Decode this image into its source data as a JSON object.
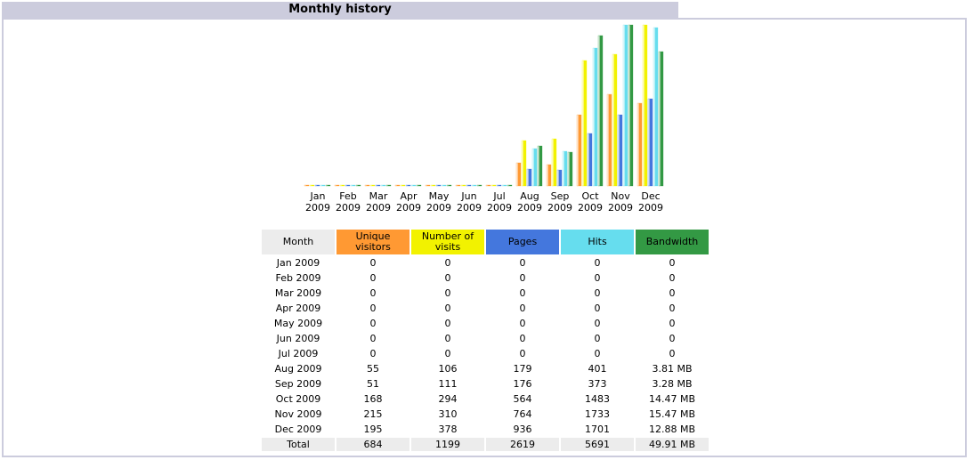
{
  "section": {
    "title": "Monthly history"
  },
  "colors": {
    "unique": "#ff9933",
    "visits": "#f2f200",
    "pages": "#4477dd",
    "hits": "#66ddee",
    "bandwidth": "#339944",
    "header_bg": "#ccccdd",
    "month_bg": "#ececec"
  },
  "table": {
    "headers": {
      "month": "Month",
      "unique": "Unique visitors",
      "visits": "Number of visits",
      "pages": "Pages",
      "hits": "Hits",
      "bandwidth": "Bandwidth"
    },
    "rows": [
      {
        "month": "Jan 2009",
        "unique": "0",
        "visits": "0",
        "pages": "0",
        "hits": "0",
        "bandwidth": "0"
      },
      {
        "month": "Feb 2009",
        "unique": "0",
        "visits": "0",
        "pages": "0",
        "hits": "0",
        "bandwidth": "0"
      },
      {
        "month": "Mar 2009",
        "unique": "0",
        "visits": "0",
        "pages": "0",
        "hits": "0",
        "bandwidth": "0"
      },
      {
        "month": "Apr 2009",
        "unique": "0",
        "visits": "0",
        "pages": "0",
        "hits": "0",
        "bandwidth": "0"
      },
      {
        "month": "May 2009",
        "unique": "0",
        "visits": "0",
        "pages": "0",
        "hits": "0",
        "bandwidth": "0"
      },
      {
        "month": "Jun 2009",
        "unique": "0",
        "visits": "0",
        "pages": "0",
        "hits": "0",
        "bandwidth": "0"
      },
      {
        "month": "Jul 2009",
        "unique": "0",
        "visits": "0",
        "pages": "0",
        "hits": "0",
        "bandwidth": "0"
      },
      {
        "month": "Aug 2009",
        "unique": "55",
        "visits": "106",
        "pages": "179",
        "hits": "401",
        "bandwidth": "3.81 MB"
      },
      {
        "month": "Sep 2009",
        "unique": "51",
        "visits": "111",
        "pages": "176",
        "hits": "373",
        "bandwidth": "3.28 MB"
      },
      {
        "month": "Oct 2009",
        "unique": "168",
        "visits": "294",
        "pages": "564",
        "hits": "1483",
        "bandwidth": "14.47 MB"
      },
      {
        "month": "Nov 2009",
        "unique": "215",
        "visits": "310",
        "pages": "764",
        "hits": "1733",
        "bandwidth": "15.47 MB"
      },
      {
        "month": "Dec 2009",
        "unique": "195",
        "visits": "378",
        "pages": "936",
        "hits": "1701",
        "bandwidth": "12.88 MB"
      }
    ],
    "total": {
      "month": "Total",
      "unique": "684",
      "visits": "1199",
      "pages": "2619",
      "hits": "5691",
      "bandwidth": "49.91 MB"
    }
  },
  "chart_data": {
    "type": "bar",
    "title": "Monthly history",
    "categories": [
      "Jan 2009",
      "Feb 2009",
      "Mar 2009",
      "Apr 2009",
      "May 2009",
      "Jun 2009",
      "Jul 2009",
      "Aug 2009",
      "Sep 2009",
      "Oct 2009",
      "Nov 2009",
      "Dec 2009"
    ],
    "tick_labels": [
      {
        "month": "Jan",
        "year": "2009"
      },
      {
        "month": "Feb",
        "year": "2009"
      },
      {
        "month": "Mar",
        "year": "2009"
      },
      {
        "month": "Apr",
        "year": "2009"
      },
      {
        "month": "May",
        "year": "2009"
      },
      {
        "month": "Jun",
        "year": "2009"
      },
      {
        "month": "Jul",
        "year": "2009"
      },
      {
        "month": "Aug",
        "year": "2009"
      },
      {
        "month": "Sep",
        "year": "2009"
      },
      {
        "month": "Oct",
        "year": "2009"
      },
      {
        "month": "Nov",
        "year": "2009"
      },
      {
        "month": "Dec",
        "year": "2009"
      }
    ],
    "series": [
      {
        "name": "Unique visitors",
        "key": "unique",
        "color": "#ff9933",
        "values": [
          0,
          0,
          0,
          0,
          0,
          0,
          0,
          55,
          51,
          168,
          215,
          195
        ]
      },
      {
        "name": "Number of visits",
        "key": "visits",
        "color": "#f2f200",
        "values": [
          0,
          0,
          0,
          0,
          0,
          0,
          0,
          106,
          111,
          294,
          310,
          378
        ]
      },
      {
        "name": "Pages",
        "key": "pages",
        "color": "#4477dd",
        "values": [
          0,
          0,
          0,
          0,
          0,
          0,
          0,
          179,
          176,
          564,
          764,
          936
        ]
      },
      {
        "name": "Hits",
        "key": "hits",
        "color": "#66ddee",
        "values": [
          0,
          0,
          0,
          0,
          0,
          0,
          0,
          401,
          373,
          1483,
          1733,
          1701
        ]
      },
      {
        "name": "Bandwidth (MB)",
        "key": "bandwidth",
        "color": "#339944",
        "values": [
          0,
          0,
          0,
          0,
          0,
          0,
          0,
          3.81,
          3.28,
          14.47,
          15.47,
          12.88
        ]
      }
    ],
    "scale_groups": [
      [
        "unique",
        "visits"
      ],
      [
        "pages",
        "hits"
      ],
      [
        "bandwidth"
      ]
    ],
    "xlabel": "",
    "ylabel": "",
    "grid": false,
    "legend": "none"
  }
}
